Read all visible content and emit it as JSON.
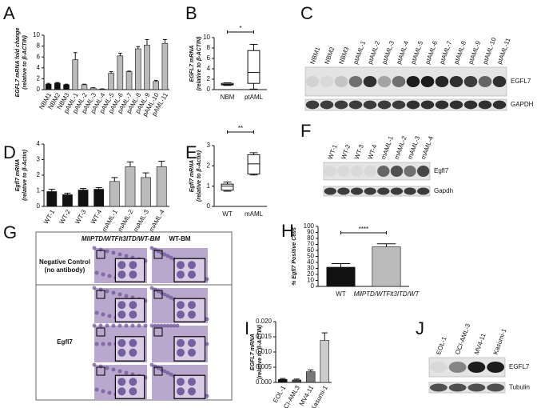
{
  "chart_data": [
    {
      "panel": "A",
      "type": "bar",
      "ylabel": [
        "EGFL7 mRNA fold change",
        "(relative to β-ACTIN)"
      ],
      "categories": [
        "NBM1",
        "NBM2",
        "NBM3",
        "pAML-1",
        "pAML-2",
        "pAML-3",
        "pAML-4",
        "pAML-5",
        "pAML-6",
        "pAML-7",
        "pAML-8",
        "pAML-9",
        "pAML-10",
        "pAML-11"
      ],
      "values": [
        1.0,
        1.2,
        0.9,
        5.5,
        0.9,
        0.3,
        0.1,
        3.0,
        6.2,
        3.3,
        7.5,
        8.2,
        1.5,
        8.5
      ],
      "errors": [
        0.15,
        0.1,
        0.1,
        1.3,
        0.1,
        0.05,
        0.05,
        0.3,
        0.5,
        0.1,
        0.4,
        1.0,
        0.2,
        0.7
      ],
      "colors": [
        "#111111",
        "#111111",
        "#111111",
        "#bbbbbb",
        "#bbbbbb",
        "#bbbbbb",
        "#bbbbbb",
        "#bbbbbb",
        "#bbbbbb",
        "#bbbbbb",
        "#bbbbbb",
        "#bbbbbb",
        "#bbbbbb",
        "#bbbbbb"
      ],
      "ylim": [
        0,
        10
      ],
      "yticks": [
        0,
        2,
        4,
        6,
        8,
        10
      ]
    },
    {
      "panel": "B",
      "type": "box",
      "ylabel": [
        "EGFL7 mRNA",
        "(relative to β-ACTIN)"
      ],
      "categories": [
        "NBM",
        "ptAML"
      ],
      "boxes": [
        {
          "min": 0.8,
          "q1": 0.9,
          "median": 1.0,
          "q3": 1.2,
          "max": 1.3
        },
        {
          "min": 0.1,
          "q1": 1.2,
          "median": 3.3,
          "q3": 7.5,
          "max": 8.7
        }
      ],
      "ylim": [
        0,
        10
      ],
      "yticks": [
        0,
        2,
        4,
        6,
        8,
        10
      ],
      "annotation": "*"
    },
    {
      "panel": "C",
      "type": "blot",
      "lanes": [
        "NBM1",
        "NBM2",
        "NBM3",
        "ptAML-1",
        "ptAML-2",
        "ptAML-3",
        "ptAML-4",
        "ptAML-5",
        "ptAML-6",
        "ptAML-7",
        "ptAML-8",
        "ptAML-9",
        "ptAML-10",
        "ptAML-11"
      ],
      "bands": [
        "EGFL7",
        "GAPDH"
      ]
    },
    {
      "panel": "D",
      "type": "bar",
      "ylabel": [
        "Egfl7 mRNA",
        "(relative to β-Actin)"
      ],
      "categories": [
        "WT-1",
        "WT-2",
        "WT-3",
        "WT-4",
        "mAML-1",
        "mAML-2",
        "mAML-3",
        "mAML-4"
      ],
      "values": [
        0.95,
        0.75,
        1.05,
        1.1,
        1.6,
        2.55,
        1.85,
        2.55
      ],
      "errors": [
        0.15,
        0.1,
        0.1,
        0.1,
        0.25,
        0.3,
        0.3,
        0.35
      ],
      "colors": [
        "#111111",
        "#111111",
        "#111111",
        "#111111",
        "#bbbbbb",
        "#bbbbbb",
        "#bbbbbb",
        "#bbbbbb"
      ],
      "ylim": [
        0,
        4
      ],
      "yticks": [
        0,
        1,
        2,
        3,
        4
      ]
    },
    {
      "panel": "E",
      "type": "box",
      "ylabel": [
        "Egfl7 mRNA",
        "(relative to β-Actin)"
      ],
      "categories": [
        "WT",
        "mAML"
      ],
      "boxes": [
        {
          "min": 0.75,
          "q1": 0.8,
          "median": 1.0,
          "q3": 1.1,
          "max": 1.2
        },
        {
          "min": 1.55,
          "q1": 1.6,
          "median": 2.1,
          "q3": 2.55,
          "max": 2.65
        }
      ],
      "ylim": [
        0,
        3
      ],
      "yticks": [
        0,
        1,
        2,
        3
      ],
      "annotation": "**"
    },
    {
      "panel": "F",
      "type": "blot",
      "lanes": [
        "WT-1",
        "WT-2",
        "WT-3",
        "WT-4",
        "mAML-1",
        "mAML-2",
        "mAML-3",
        "mAML-4"
      ],
      "bands": [
        "Egfl7",
        "Gapdh"
      ]
    },
    {
      "panel": "G",
      "type": "micrograph-grid",
      "columns": [
        "MllPTD/WTFlt3ITD/WT-BM",
        "WT-BM"
      ],
      "rows": [
        [
          "Negative Control",
          "(no antibody)"
        ],
        [
          "Egfl7"
        ]
      ]
    },
    {
      "panel": "H",
      "type": "bar",
      "ylabel": [
        "% Egfl7 Positive Cells"
      ],
      "categories": [
        "WT",
        "MllPTD/WTFlt3ITD/WT"
      ],
      "values": [
        32,
        66
      ],
      "errors": [
        6,
        5
      ],
      "colors": [
        "#111111",
        "#bbbbbb"
      ],
      "ylim": [
        0,
        100
      ],
      "yticks": [
        0,
        10,
        20,
        30,
        40,
        50,
        60,
        70,
        80,
        90,
        100
      ],
      "annotation": "****"
    },
    {
      "panel": "I",
      "type": "bar",
      "ylabel": [
        "EGFL7 mRNA",
        "(relative to β-ACTIN)"
      ],
      "categories": [
        "EOL-1",
        "OCI-AML3",
        "MV4-11",
        "Kasumi-1"
      ],
      "values": [
        0.001,
        0.0008,
        0.0035,
        0.0138
      ],
      "errors": [
        0.0003,
        0.0003,
        0.0006,
        0.0025
      ],
      "colors": [
        "#111111",
        "#444444",
        "#777777",
        "#cccccc"
      ],
      "ylim": [
        0,
        0.02
      ],
      "yticks": [
        {
          "value": 0,
          "label": "0.000"
        },
        {
          "value": 0.005,
          "label": "0.005"
        },
        {
          "value": 0.01,
          "label": "0.010"
        },
        {
          "value": 0.015,
          "label": "0.015"
        },
        {
          "value": 0.02,
          "label": "0.020"
        }
      ]
    },
    {
      "panel": "J",
      "type": "blot",
      "lanes": [
        "EOL-1",
        "OCI-AML-3",
        "MV4-11",
        "Kasumi-1"
      ],
      "bands": [
        "EGFL7",
        "Tubulin"
      ]
    }
  ]
}
